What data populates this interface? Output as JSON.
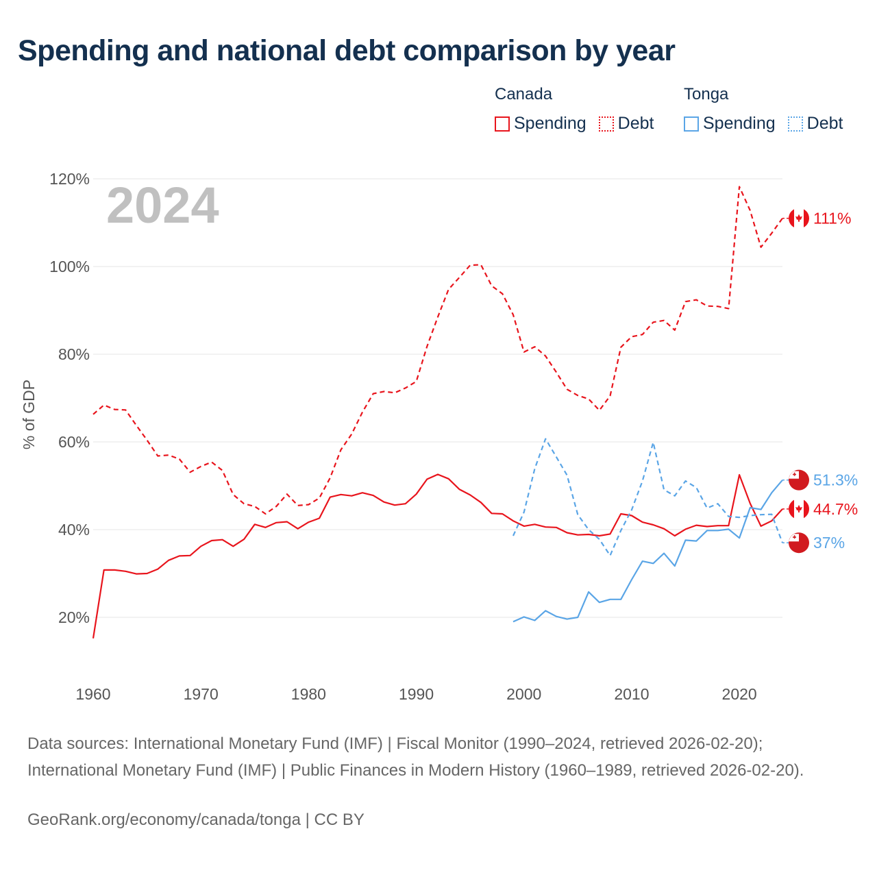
{
  "title": "Spending and national debt comparison by year",
  "legend": {
    "groups": [
      {
        "country": "Canada",
        "color": "#e8141c",
        "items": [
          {
            "label": "Spending",
            "style": "solid"
          },
          {
            "label": "Debt",
            "style": "dotted"
          }
        ]
      },
      {
        "country": "Tonga",
        "color": "#5aa5e6",
        "items": [
          {
            "label": "Spending",
            "style": "solid"
          },
          {
            "label": "Debt",
            "style": "dotted"
          }
        ]
      }
    ]
  },
  "footer": {
    "sources": "Data sources: International Monetary Fund (IMF) | Fiscal Monitor (1990–2024, retrieved 2026-02-20); International Monetary Fund (IMF) | Public Finances in Modern History (1960–1989, retrieved 2026-02-20).",
    "url": "GeoRank.org/economy/canada/tonga | CC BY"
  },
  "chart_data": {
    "type": "line",
    "title": "Spending and national debt comparison by year",
    "year_label": "2024",
    "ylabel": "% of GDP",
    "xlabel": "",
    "xlim": [
      1960,
      2024
    ],
    "ylim": [
      10,
      120
    ],
    "x_ticks": [
      1960,
      1970,
      1980,
      1990,
      2000,
      2010,
      2020
    ],
    "y_ticks": [
      20,
      40,
      60,
      80,
      100,
      120
    ],
    "y_tick_suffix": "%",
    "grid": true,
    "colors": {
      "canada": "#e8141c",
      "tonga": "#5aa5e6",
      "year_label": "#c0c0c0",
      "grid": "#e6e6e6",
      "axis_text": "#555555"
    },
    "series": [
      {
        "name": "Canada Spending",
        "country": "Canada",
        "style": "solid",
        "color": "#e8141c",
        "start_year": 1960,
        "values": [
          15.2,
          30.8,
          30.8,
          30.5,
          29.9,
          30.0,
          31.0,
          33.0,
          34.0,
          34.1,
          36.2,
          37.5,
          37.7,
          36.2,
          37.8,
          41.2,
          40.5,
          41.6,
          41.8,
          40.2,
          41.7,
          42.6,
          47.4,
          48.0,
          47.7,
          48.4,
          47.8,
          46.3,
          45.6,
          45.9,
          48.1,
          51.5,
          52.6,
          51.6,
          49.2,
          47.9,
          46.2,
          43.7,
          43.6,
          42.0,
          40.8,
          41.2,
          40.6,
          40.5,
          39.3,
          38.8,
          38.9,
          38.6,
          39.0,
          43.6,
          43.2,
          41.7,
          41.1,
          40.2,
          38.6,
          40.1,
          41.0,
          40.7,
          40.9,
          40.9,
          52.5,
          46.0,
          40.8,
          42.0,
          44.7
        ],
        "end_label": "44.7%"
      },
      {
        "name": "Canada Debt",
        "country": "Canada",
        "style": "dashed",
        "color": "#e8141c",
        "start_year": 1960,
        "values": [
          66.3,
          68.4,
          67.4,
          67.3,
          63.8,
          60.4,
          56.8,
          57.0,
          56.1,
          53.1,
          54.4,
          55.4,
          53.5,
          48.0,
          45.9,
          45.3,
          43.6,
          45.3,
          48.1,
          45.5,
          45.7,
          47.2,
          51.8,
          58.2,
          61.8,
          66.8,
          71.0,
          71.5,
          71.2,
          72.3,
          73.8,
          81.8,
          88.5,
          94.8,
          97.5,
          100.3,
          100.4,
          95.6,
          93.8,
          89.0,
          80.5,
          81.7,
          79.6,
          75.9,
          72.0,
          70.6,
          69.8,
          67.2,
          70.5,
          81.6,
          84.0,
          84.5,
          87.3,
          87.7,
          85.5,
          92.0,
          92.4,
          91.0,
          90.9,
          90.4,
          118.2,
          112.8,
          104.4,
          107.6,
          111.0
        ],
        "end_label": "111%"
      },
      {
        "name": "Tonga Spending",
        "country": "Tonga",
        "style": "solid",
        "color": "#5aa5e6",
        "start_year": 1999,
        "values": [
          19.0,
          20.1,
          19.3,
          21.5,
          20.2,
          19.6,
          20.0,
          25.8,
          23.4,
          24.1,
          24.1,
          28.6,
          32.8,
          32.3,
          34.6,
          31.7,
          37.6,
          37.4,
          39.8,
          39.8,
          40.1,
          38.1,
          45.0,
          44.6,
          48.4,
          51.3
        ],
        "end_label": "51.3%"
      },
      {
        "name": "Tonga Debt",
        "country": "Tonga",
        "style": "dashed",
        "color": "#5aa5e6",
        "start_year": 1999,
        "values": [
          38.6,
          44.0,
          53.9,
          60.7,
          56.6,
          52.4,
          43.4,
          40.0,
          37.8,
          34.1,
          39.8,
          44.5,
          51.1,
          59.9,
          49.1,
          47.7,
          51.1,
          49.6,
          44.9,
          45.9,
          43.0,
          42.8,
          43.2,
          43.4,
          43.5,
          37.0
        ],
        "end_label": "37%"
      }
    ]
  }
}
